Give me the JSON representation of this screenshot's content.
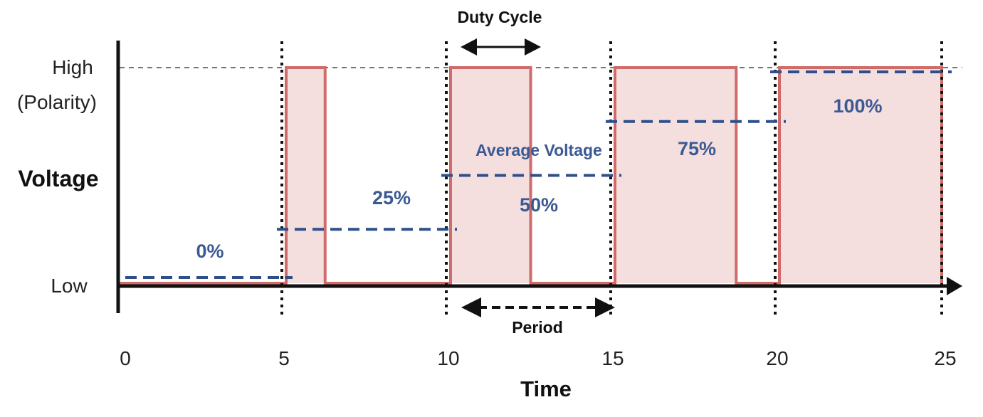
{
  "diagram": {
    "y_axis_label": "Voltage",
    "x_axis_label": "Time",
    "level_high_label": "High",
    "level_high_sub": "(Polarity)",
    "level_low_label": "Low",
    "x_ticks": [
      "0",
      "5",
      "10",
      "15",
      "20",
      "25"
    ],
    "duty_cycle_label": "Duty Cycle",
    "period_label": "Period",
    "average_voltage_label": "Average Voltage",
    "period_units": 5,
    "segments": [
      {
        "label": "0%",
        "duty": 0.0,
        "start": 0
      },
      {
        "label": "25%",
        "duty": 0.25,
        "start": 5
      },
      {
        "label": "50%",
        "duty": 0.5,
        "start": 10
      },
      {
        "label": "75%",
        "duty": 0.75,
        "start": 15
      },
      {
        "label": "100%",
        "duty": 1.0,
        "start": 20
      }
    ],
    "colors": {
      "pulse_stroke": "#cf6b68",
      "pulse_fill": "#f4dede",
      "average_line": "#2f4f8a",
      "percent_text": "#3b5a94",
      "axis": "#111111"
    }
  }
}
